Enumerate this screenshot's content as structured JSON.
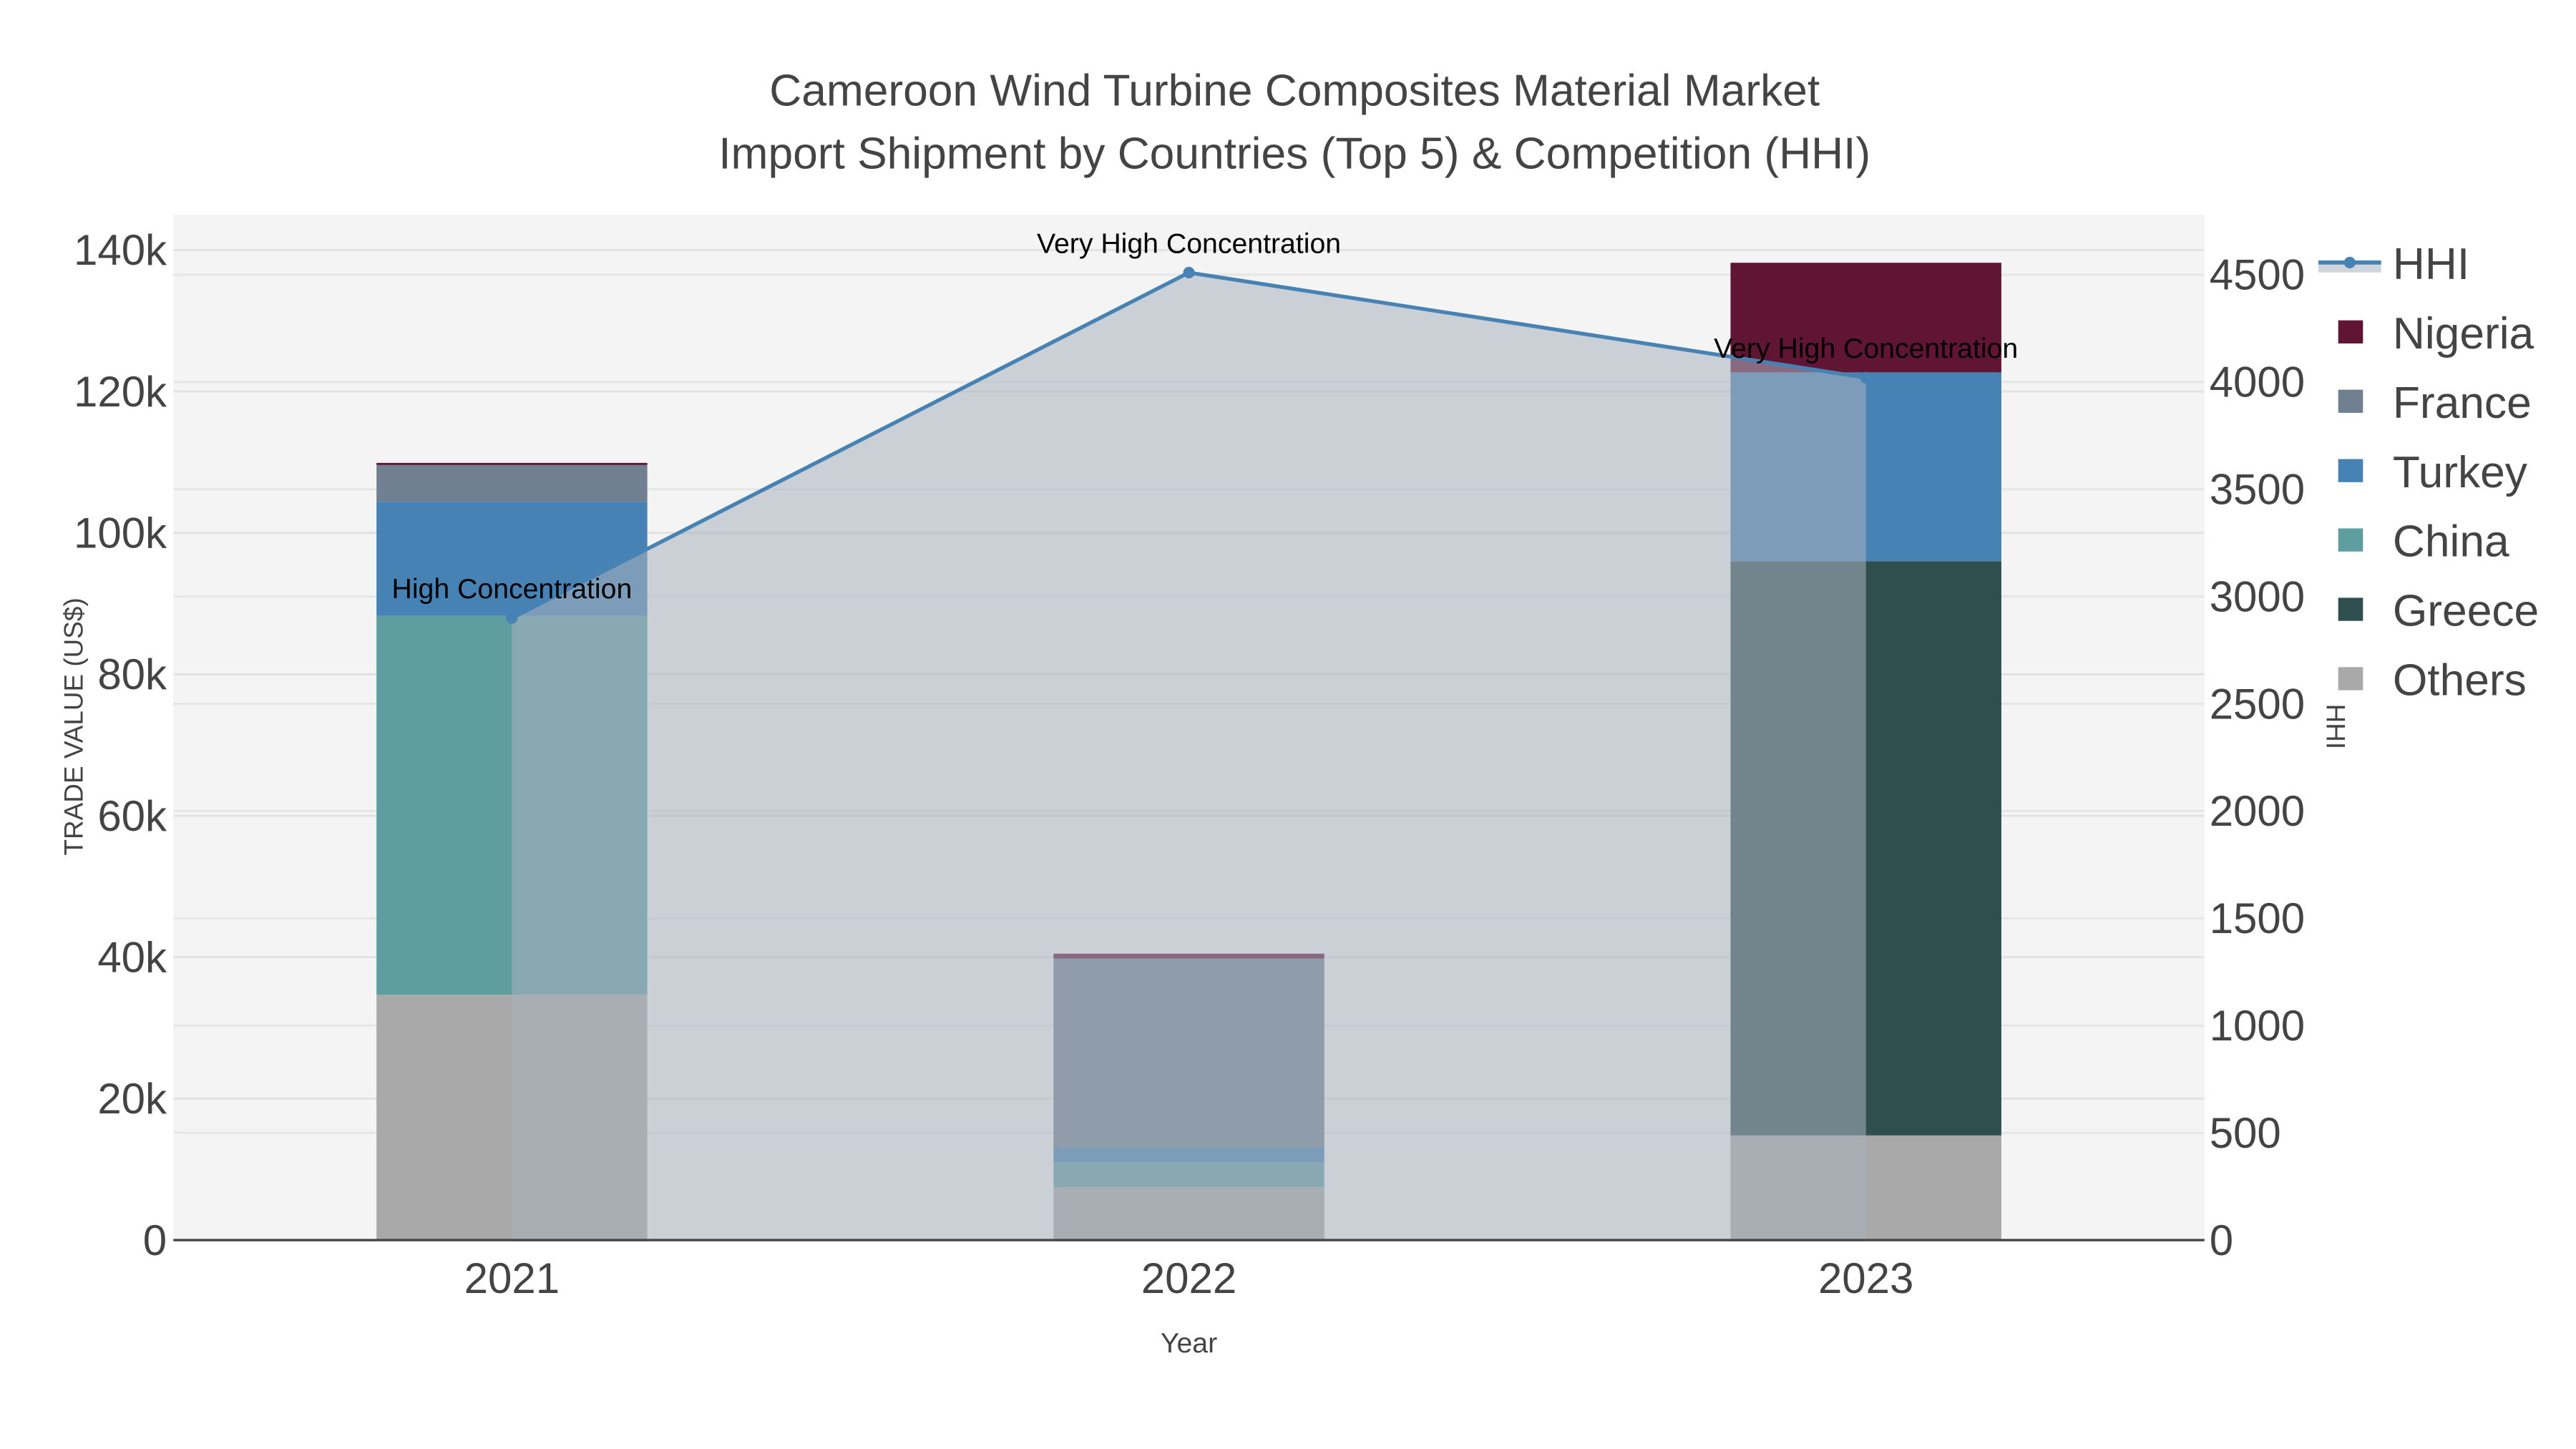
{
  "chart_data": {
    "type": "bar",
    "title": [
      "Cameroon Wind Turbine Composites Material Market",
      "Import Shipment by Countries (Top 5) & Competition (HHI)"
    ],
    "xlabel": "Year",
    "ylabel": "TRADE VALUE (US$)",
    "y2label": "HHI",
    "categories": [
      "2021",
      "2022",
      "2023"
    ],
    "ylim": [
      0,
      145000
    ],
    "y2lim": [
      0,
      4780
    ],
    "yticks": [
      0,
      20000,
      40000,
      60000,
      80000,
      100000,
      120000,
      140000
    ],
    "ytick_labels": [
      "0",
      "20k",
      "40k",
      "60k",
      "80k",
      "100k",
      "120k",
      "140k"
    ],
    "y2ticks": [
      0,
      500,
      1000,
      1500,
      2000,
      2500,
      3000,
      3500,
      4000,
      4500
    ],
    "y2tick_labels": [
      "0",
      "500",
      "1000",
      "1500",
      "2000",
      "2500",
      "3000",
      "3500",
      "4000",
      "4500"
    ],
    "barmode": "stack",
    "series": [
      {
        "name": "Others",
        "color": "#a9a9a9",
        "values": [
          34700,
          7500,
          14800
        ]
      },
      {
        "name": "Greece",
        "color": "#2f4f4f",
        "values": [
          0,
          0,
          81200
        ]
      },
      {
        "name": "China",
        "color": "#5f9ea0",
        "values": [
          53600,
          3500,
          0
        ]
      },
      {
        "name": "Turkey",
        "color": "#4682b4",
        "values": [
          16100,
          2100,
          26700
        ]
      },
      {
        "name": "France",
        "color": "#708090",
        "values": [
          5200,
          26700,
          0
        ]
      },
      {
        "name": "Nigeria",
        "color": "#601535",
        "values": [
          300,
          700,
          15500
        ]
      }
    ],
    "line": {
      "name": "HHI",
      "color": "#4682b4",
      "fill": "tozeroy",
      "axis": "y2",
      "values": [
        2900,
        4510,
        4020
      ]
    },
    "annotations": [
      "High Concentration",
      "Very High Concentration",
      "Very High Concentration"
    ],
    "legend_order": [
      "HHI",
      "Nigeria",
      "France",
      "Turkey",
      "China",
      "Greece",
      "Others"
    ],
    "legend_position": "right",
    "grid": true
  }
}
